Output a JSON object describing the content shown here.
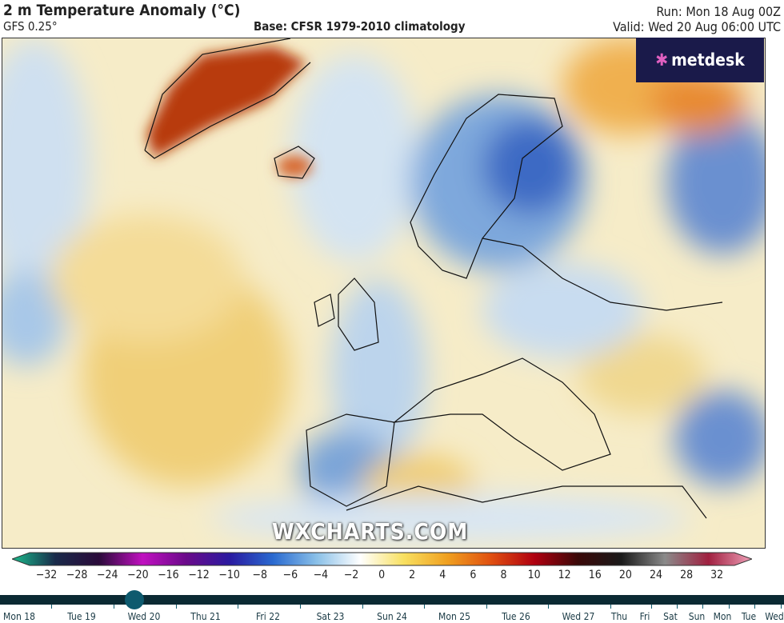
{
  "header": {
    "title": "2 m Temperature Anomaly (°C)",
    "model": "GFS 0.25°",
    "base": "Base: CFSR 1979-2010 climatology",
    "run": "Run: Mon 18 Aug 00Z",
    "valid": "Valid: Wed 20 Aug 06:00 UTC"
  },
  "logo": {
    "text": "metdesk"
  },
  "watermark": "WXCHARTS.COM",
  "colorbar": {
    "ticks": [
      "−32",
      "−28",
      "−24",
      "−20",
      "−16",
      "−12",
      "−10",
      "−8",
      "−6",
      "−4",
      "−2",
      "0",
      "2",
      "4",
      "6",
      "8",
      "10",
      "12",
      "16",
      "20",
      "24",
      "28",
      "32"
    ],
    "colors": [
      "#1abc8c",
      "#1a2a4a",
      "#2a0a3a",
      "#c010c0",
      "#6a0a8a",
      "#2a1aa0",
      "#2a6ad0",
      "#8ac0e8",
      "#ffffff",
      "#f8e060",
      "#f0a020",
      "#e05010",
      "#b00010",
      "#3a0808",
      "#1a1a1a",
      "#8a8a8a",
      "#a02040",
      "#f0a0b8"
    ]
  },
  "timeline": {
    "selected": "Wed 20",
    "days": [
      "Mon 18",
      "Tue 19",
      "Wed 20",
      "Thu 21",
      "Fri 22",
      "Sat 23",
      "Sun 24",
      "Mon 25",
      "Tue 26",
      "Wed 27",
      "Thu",
      "Fri",
      "Sat",
      "Sun",
      "Mon",
      "Tue",
      "Wed"
    ]
  }
}
